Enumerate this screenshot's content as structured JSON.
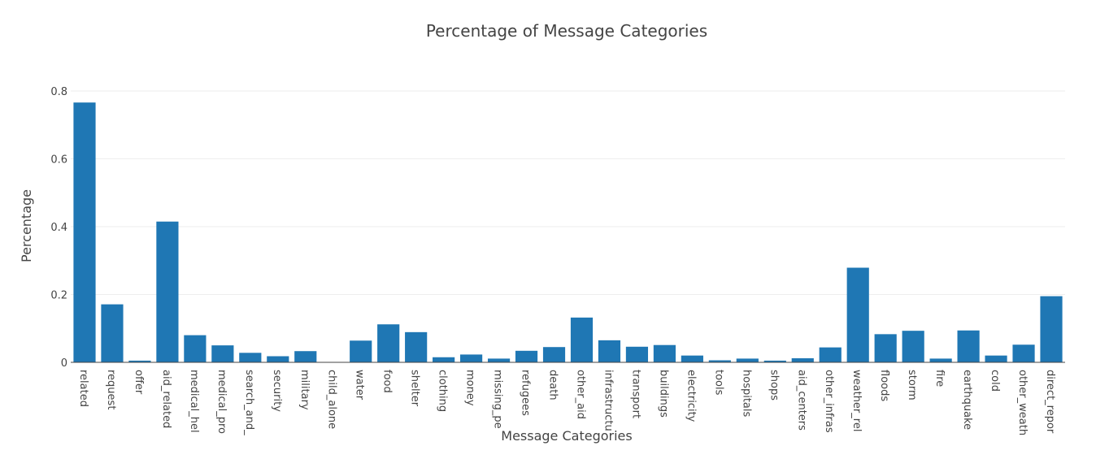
{
  "chart_data": {
    "type": "bar",
    "title": "Percentage of Message Categories",
    "xlabel": "Message Categories",
    "ylabel": "Percentage",
    "ylim": [
      0,
      0.8
    ],
    "yticks": [
      0,
      0.2,
      0.4,
      0.6,
      0.8
    ],
    "ytick_labels": [
      "0",
      "0.2",
      "0.4",
      "0.6",
      "0.8"
    ],
    "grid": true,
    "bar_color": "#1f77b4",
    "categories": [
      "related",
      "request",
      "offer",
      "aid_related",
      "medical_hel",
      "medical_pro",
      "search_and_",
      "security",
      "military",
      "child_alone",
      "water",
      "food",
      "shelter",
      "clothing",
      "money",
      "missing_pe",
      "refugees",
      "death",
      "other_aid",
      "infrastructu",
      "transport",
      "buildings",
      "electricity",
      "tools",
      "hospitals",
      "shops",
      "aid_centers",
      "other_infras",
      "weather_rel",
      "floods",
      "storm",
      "fire",
      "earthquake",
      "cold",
      "other_weath",
      "direct_repor"
    ],
    "values": [
      0.766,
      0.171,
      0.005,
      0.415,
      0.08,
      0.05,
      0.028,
      0.018,
      0.033,
      0.0,
      0.064,
      0.112,
      0.089,
      0.015,
      0.023,
      0.011,
      0.034,
      0.045,
      0.132,
      0.065,
      0.046,
      0.051,
      0.02,
      0.006,
      0.011,
      0.005,
      0.012,
      0.044,
      0.279,
      0.083,
      0.093,
      0.011,
      0.094,
      0.02,
      0.052,
      0.195
    ]
  }
}
